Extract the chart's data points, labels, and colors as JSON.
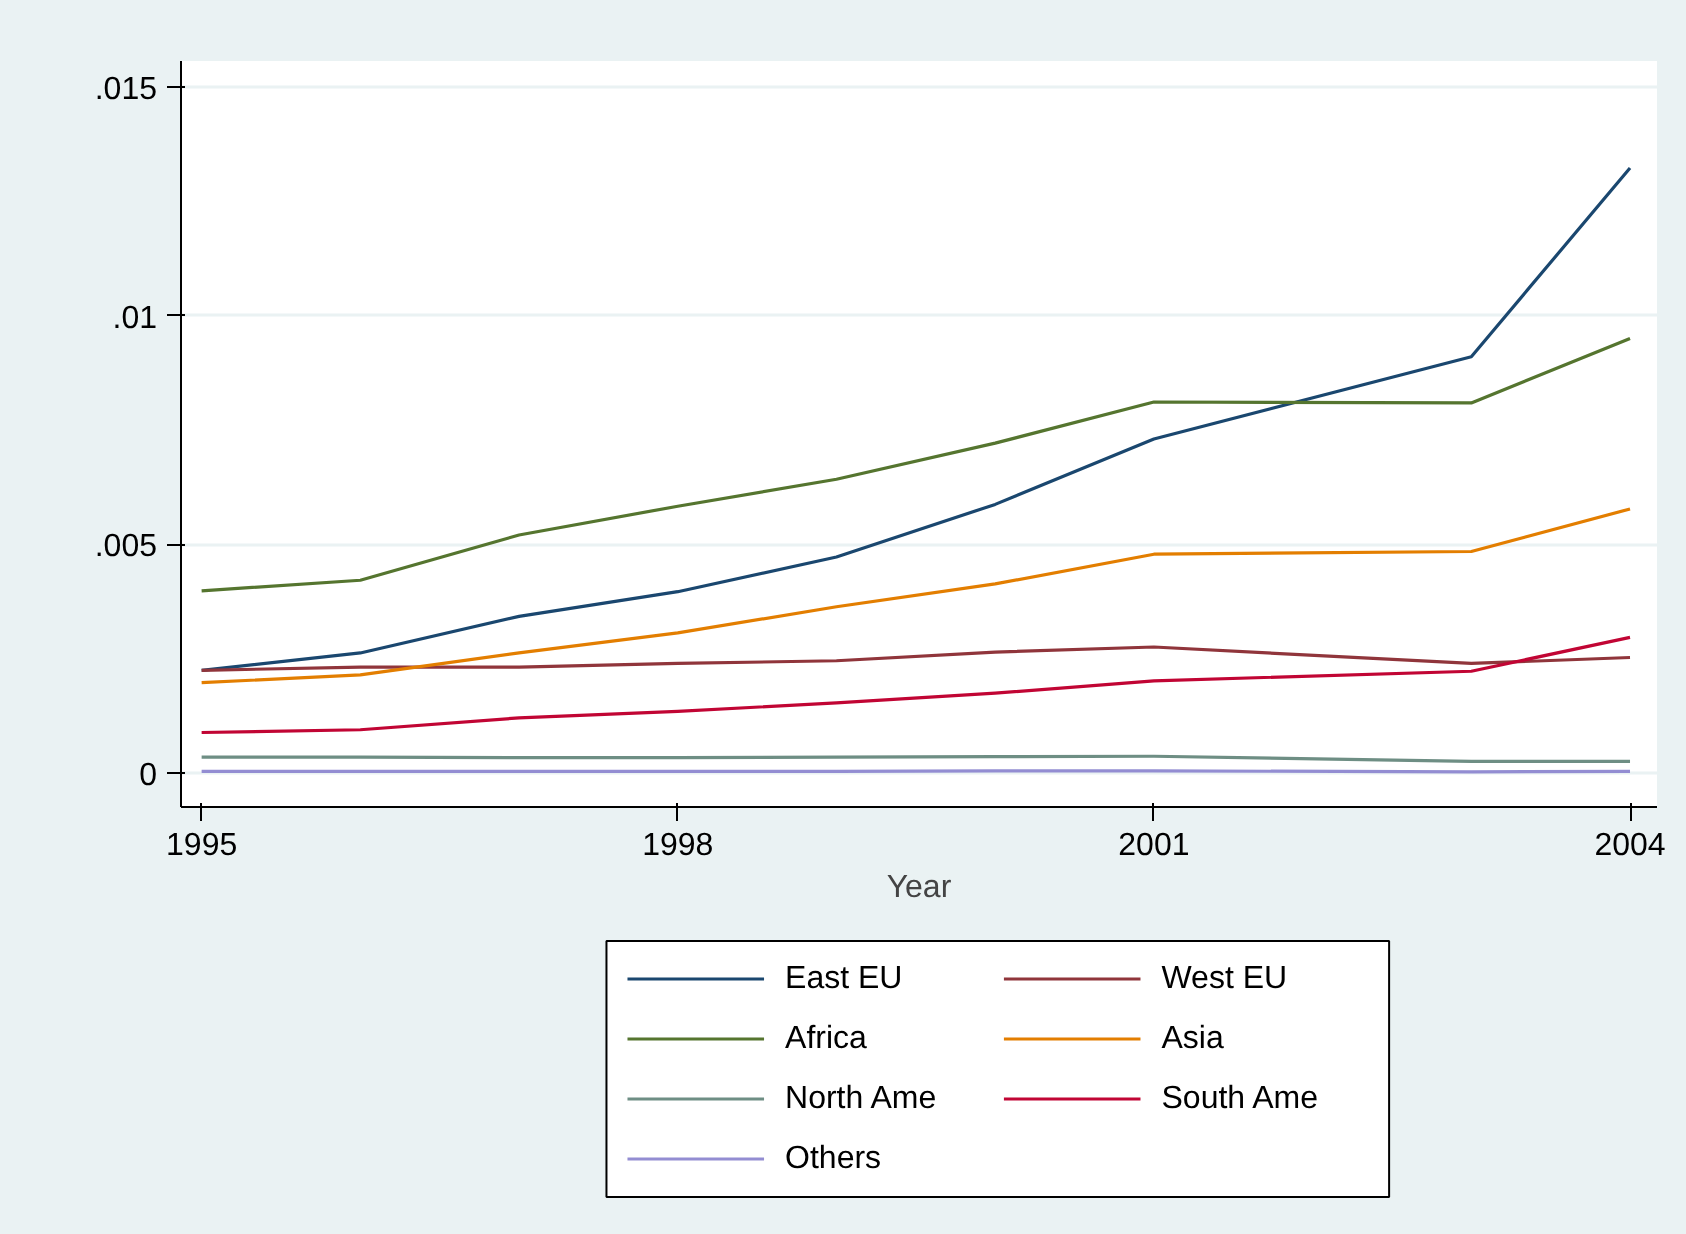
{
  "chart_data": {
    "type": "line",
    "xlabel": "Year",
    "x": [
      1995,
      1996,
      1997,
      1998,
      1999,
      2000,
      2001,
      2003,
      2004
    ],
    "xlim": [
      1994.87,
      2004.17
    ],
    "xticks": [
      1995,
      1998,
      2001,
      2004
    ],
    "ylim": [
      -0.00075,
      0.01557
    ],
    "yticks": [
      {
        "value": 0,
        "label": "0"
      },
      {
        "value": 0.005,
        "label": ".005"
      },
      {
        "value": 0.01,
        "label": ".01"
      },
      {
        "value": 0.015,
        "label": ".015"
      }
    ],
    "grid": "y",
    "legend": "bottom",
    "marker": "none",
    "line_style": "solid",
    "series": [
      {
        "name": "East EU",
        "color": "#1a476f",
        "values": [
          0.00224,
          0.00262,
          0.00342,
          0.00396,
          0.00472,
          0.00587,
          0.0073,
          0.0091,
          0.01323
        ]
      },
      {
        "name": "West EU",
        "color": "#90353b",
        "values": [
          0.00224,
          0.00231,
          0.00231,
          0.00239,
          0.00245,
          0.00264,
          0.00275,
          0.00239,
          0.00252
        ]
      },
      {
        "name": "Africa",
        "color": "#55752f",
        "values": [
          0.00398,
          0.00421,
          0.0052,
          0.00583,
          0.00642,
          0.00721,
          0.00811,
          0.00809,
          0.0095
        ]
      },
      {
        "name": "Asia",
        "color": "#e37e00",
        "values": [
          0.00197,
          0.00214,
          0.00262,
          0.00306,
          0.00363,
          0.00413,
          0.00478,
          0.00484,
          0.00577
        ]
      },
      {
        "name": "North Ame",
        "color": "#6e8e84",
        "values": [
          0.00034,
          0.00034,
          0.00033,
          0.00033,
          0.00034,
          0.00035,
          0.00036,
          0.00025,
          0.00025
        ]
      },
      {
        "name": "South Ame",
        "color": "#c10534",
        "values": [
          0.00088,
          0.00094,
          0.0012,
          0.00134,
          0.00153,
          0.00174,
          0.00201,
          0.00222,
          0.00296
        ]
      },
      {
        "name": "Others",
        "color": "#938dd2",
        "values": [
          3e-05,
          3e-05,
          3e-05,
          3e-05,
          3e-05,
          4e-05,
          4e-05,
          2e-05,
          3e-05
        ]
      }
    ]
  }
}
